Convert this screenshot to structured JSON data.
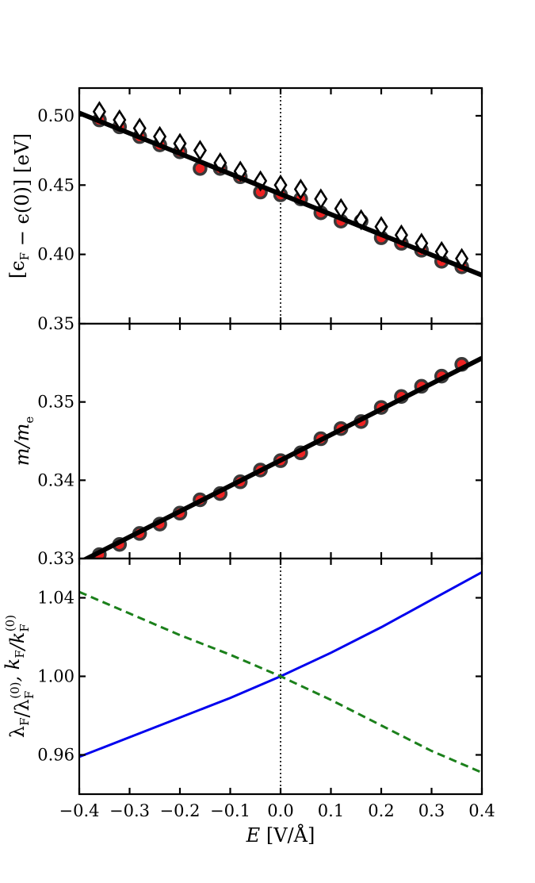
{
  "chart_data": [
    {
      "type": "scatter",
      "panel": "top",
      "ylabel": "[ϵ_F − ϵ(0)] [eV]",
      "ylabel_parts": [
        "[ϵ",
        "F",
        " − ϵ(0)] [eV]"
      ],
      "xlim": [
        -0.4,
        0.4
      ],
      "ylim": [
        0.35,
        0.52
      ],
      "yticks": [
        0.35,
        0.4,
        0.45,
        0.5
      ],
      "ytick_labels": [
        "0.35",
        "0.40",
        "0.45",
        "0.50"
      ],
      "series": [
        {
          "marker": "circle",
          "x": [
            -0.36,
            -0.32,
            -0.28,
            -0.24,
            -0.2,
            -0.16,
            -0.12,
            -0.08,
            -0.04,
            0.0,
            0.04,
            0.08,
            0.12,
            0.16,
            0.2,
            0.24,
            0.28,
            0.32,
            0.36
          ],
          "y": [
            0.497,
            0.492,
            0.485,
            0.479,
            0.474,
            0.462,
            0.462,
            0.456,
            0.445,
            0.443,
            0.44,
            0.43,
            0.424,
            0.424,
            0.412,
            0.408,
            0.403,
            0.395,
            0.391
          ]
        },
        {
          "marker": "diamond",
          "x": [
            -0.36,
            -0.32,
            -0.28,
            -0.24,
            -0.2,
            -0.16,
            -0.12,
            -0.08,
            -0.04,
            0.0,
            0.04,
            0.08,
            0.12,
            0.16,
            0.2,
            0.24,
            0.28,
            0.32,
            0.36
          ],
          "y": [
            0.503,
            0.497,
            0.491,
            0.485,
            0.48,
            0.475,
            0.466,
            0.46,
            0.453,
            0.45,
            0.447,
            0.44,
            0.433,
            0.425,
            0.42,
            0.414,
            0.408,
            0.402,
            0.397
          ]
        },
        {
          "marker": "line",
          "x": [
            -0.4,
            0.4
          ],
          "y": [
            0.502,
            0.385
          ]
        }
      ]
    },
    {
      "type": "scatter",
      "panel": "middle",
      "ylabel_parts": [
        "m/m",
        "e"
      ],
      "xlim": [
        -0.4,
        0.4
      ],
      "ylim": [
        0.33,
        0.36
      ],
      "yticks": [
        0.33,
        0.34,
        0.35
      ],
      "ytick_labels": [
        "0.33",
        "0.34",
        "0.35"
      ],
      "series": [
        {
          "marker": "circle",
          "x": [
            -0.36,
            -0.32,
            -0.28,
            -0.24,
            -0.2,
            -0.16,
            -0.12,
            -0.08,
            -0.04,
            0.0,
            0.04,
            0.08,
            0.12,
            0.16,
            0.2,
            0.24,
            0.28,
            0.32,
            0.36
          ],
          "y": [
            0.3305,
            0.3318,
            0.3332,
            0.3344,
            0.3358,
            0.3375,
            0.3383,
            0.3398,
            0.3413,
            0.3425,
            0.3435,
            0.3453,
            0.3466,
            0.3475,
            0.3493,
            0.3507,
            0.352,
            0.3533,
            0.3548
          ]
        },
        {
          "marker": "line",
          "x": [
            -0.4,
            0.4
          ],
          "y": [
            0.3295,
            0.3556
          ]
        }
      ]
    },
    {
      "type": "line",
      "panel": "bottom",
      "xlabel_parts": [
        "E",
        " [V/Å]"
      ],
      "ylabel_parts": [
        "λ",
        "F",
        "/λ",
        "F",
        "(0)",
        ", k",
        "F",
        "/k",
        "F",
        "(0)"
      ],
      "xlim": [
        -0.4,
        0.4
      ],
      "ylim": [
        0.94,
        1.06
      ],
      "xticks": [
        -0.4,
        -0.3,
        -0.2,
        -0.1,
        0.0,
        0.1,
        0.2,
        0.3,
        0.4
      ],
      "xtick_labels": [
        "−0.4",
        "−0.3",
        "−0.2",
        "−0.1",
        "0.0",
        "0.1",
        "0.2",
        "0.3",
        "0.4"
      ],
      "yticks": [
        0.96,
        1.0,
        1.04
      ],
      "ytick_labels": [
        "0.96",
        "1.00",
        "1.04"
      ],
      "series": [
        {
          "style": "solid",
          "color": "#0000ee",
          "x": [
            -0.4,
            -0.3,
            -0.2,
            -0.1,
            0.0,
            0.1,
            0.2,
            0.3,
            0.4
          ],
          "y": [
            0.959,
            0.969,
            0.979,
            0.989,
            1.0,
            1.012,
            1.025,
            1.039,
            1.053
          ]
        },
        {
          "style": "dashed",
          "color": "#1b801b",
          "x": [
            -0.4,
            -0.3,
            -0.2,
            -0.1,
            0.0,
            0.1,
            0.2,
            0.3,
            0.4
          ],
          "y": [
            1.043,
            1.032,
            1.021,
            1.011,
            1.0,
            0.988,
            0.975,
            0.962,
            0.951
          ]
        }
      ]
    }
  ]
}
